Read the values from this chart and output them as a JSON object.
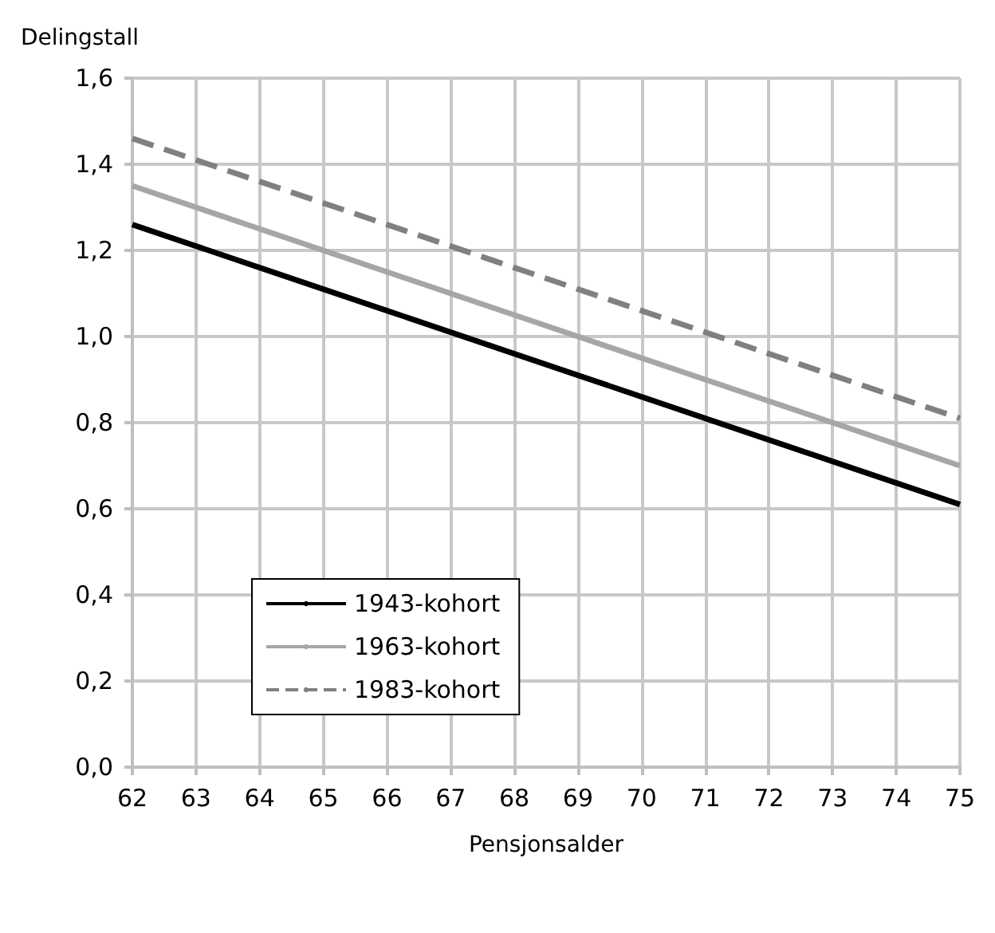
{
  "chart_data": {
    "type": "line",
    "xlabel": "Pensjonsalder",
    "ylabel": "Delingstall",
    "x": [
      62,
      63,
      64,
      65,
      66,
      67,
      68,
      69,
      70,
      71,
      72,
      73,
      74,
      75
    ],
    "series": [
      {
        "name": "1943-kohort",
        "color": "#000000",
        "line_style": "solid",
        "values": [
          1.26,
          1.21,
          1.16,
          1.11,
          1.06,
          1.01,
          0.96,
          0.91,
          0.86,
          0.81,
          0.76,
          0.71,
          0.66,
          0.61
        ]
      },
      {
        "name": "1963-kohort",
        "color": "#a6a6a6",
        "line_style": "solid",
        "values": [
          1.35,
          1.3,
          1.25,
          1.2,
          1.15,
          1.1,
          1.05,
          1.0,
          0.95,
          0.9,
          0.85,
          0.8,
          0.75,
          0.7
        ]
      },
      {
        "name": "1983-kohort",
        "color": "#808080",
        "line_style": "dashed",
        "values": [
          1.46,
          1.41,
          1.36,
          1.31,
          1.26,
          1.21,
          1.16,
          1.11,
          1.06,
          1.01,
          0.96,
          0.91,
          0.86,
          0.81
        ]
      }
    ],
    "xlim": [
      62,
      75
    ],
    "xticks": [
      62,
      63,
      64,
      65,
      66,
      67,
      68,
      69,
      70,
      71,
      72,
      73,
      74,
      75
    ],
    "ylim": [
      0,
      1.6
    ],
    "yticks": [
      {
        "value": 0,
        "label": "0,0"
      },
      {
        "value": 0.2,
        "label": "0,2"
      },
      {
        "value": 0.4,
        "label": "0,4"
      },
      {
        "value": 0.6,
        "label": "0,6"
      },
      {
        "value": 0.8,
        "label": "0,8"
      },
      {
        "value": 1.0,
        "label": "1,0"
      },
      {
        "value": 1.2,
        "label": "1,2"
      },
      {
        "value": 1.4,
        "label": "1,4"
      },
      {
        "value": 1.6,
        "label": "1,6"
      }
    ],
    "grid": true,
    "legend": "bottom left",
    "marker": "none"
  }
}
